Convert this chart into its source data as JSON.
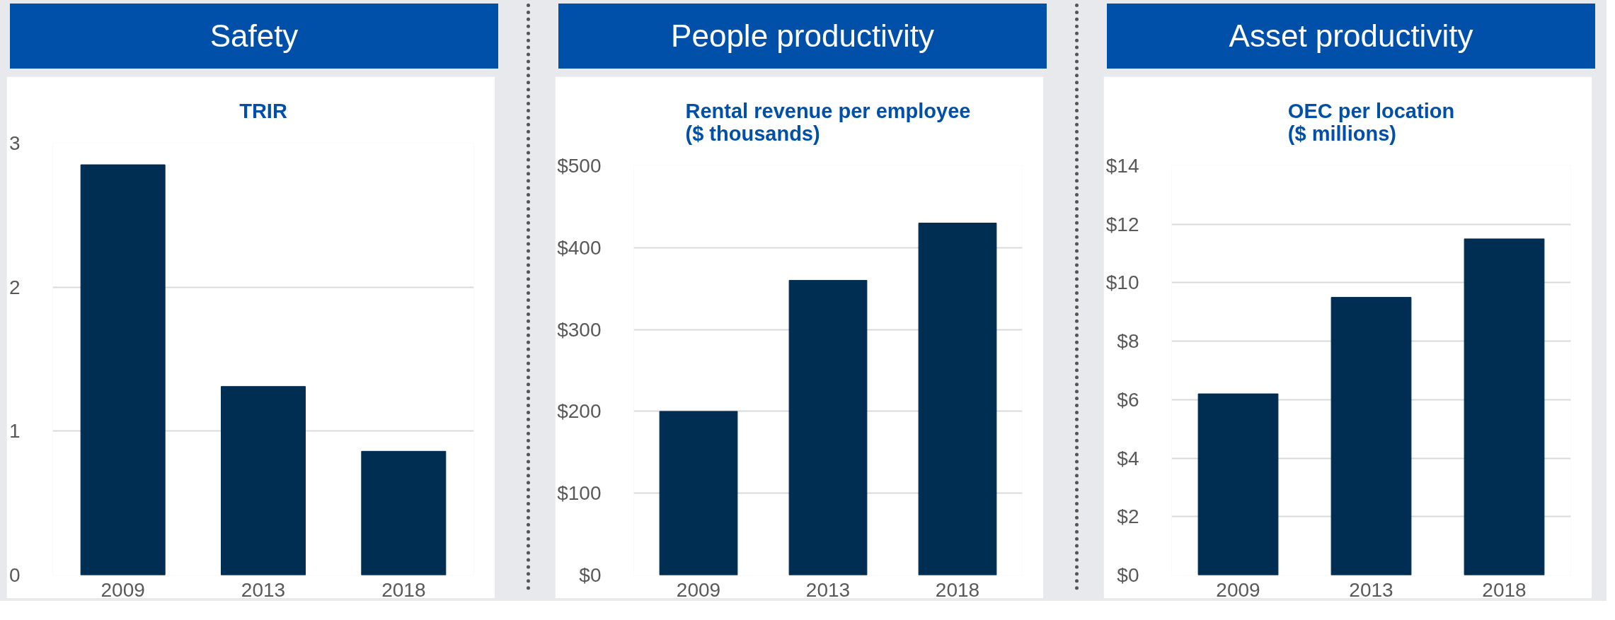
{
  "chart_data": [
    {
      "type": "bar",
      "title": "Safety",
      "subtitle": "TRIR",
      "categories": [
        "2009",
        "2013",
        "2018"
      ],
      "values": [
        2.85,
        1.31,
        0.86
      ],
      "color": "#002d52",
      "ylim": [
        0,
        3
      ],
      "yticks": [
        0,
        1,
        2,
        3
      ],
      "grid": "y"
    },
    {
      "type": "bar",
      "title": "People productivity",
      "subtitle": "Rental revenue per employee\n($ thousands)",
      "categories": [
        "2009",
        "2013",
        "2018"
      ],
      "values": [
        200,
        360,
        430
      ],
      "color": "#002d52",
      "ylim": [
        0,
        500
      ],
      "yticks": [
        {
          "value": 0,
          "label": "$0"
        },
        {
          "value": 100,
          "label": "$100"
        },
        {
          "value": 200,
          "label": "$200"
        },
        {
          "value": 300,
          "label": "$300"
        },
        {
          "value": 400,
          "label": "$400"
        },
        {
          "value": 500,
          "label": "$500"
        }
      ],
      "grid": "y"
    },
    {
      "type": "bar",
      "title": "Asset productivity",
      "subtitle": "OEC per location\n($ millions)",
      "categories": [
        "2009",
        "2013",
        "2018"
      ],
      "values": [
        6.2,
        9.5,
        11.5
      ],
      "color": "#002d52",
      "ylim": [
        0,
        14
      ],
      "yticks": [
        {
          "value": 0,
          "label": "$0"
        },
        {
          "value": 2,
          "label": "$2"
        },
        {
          "value": 4,
          "label": "$4"
        },
        {
          "value": 6,
          "label": "$6"
        },
        {
          "value": 8,
          "label": "$8"
        },
        {
          "value": 10,
          "label": "$10"
        },
        {
          "value": 12,
          "label": "$12"
        },
        {
          "value": 14,
          "label": "$14"
        }
      ],
      "grid": "y"
    }
  ]
}
